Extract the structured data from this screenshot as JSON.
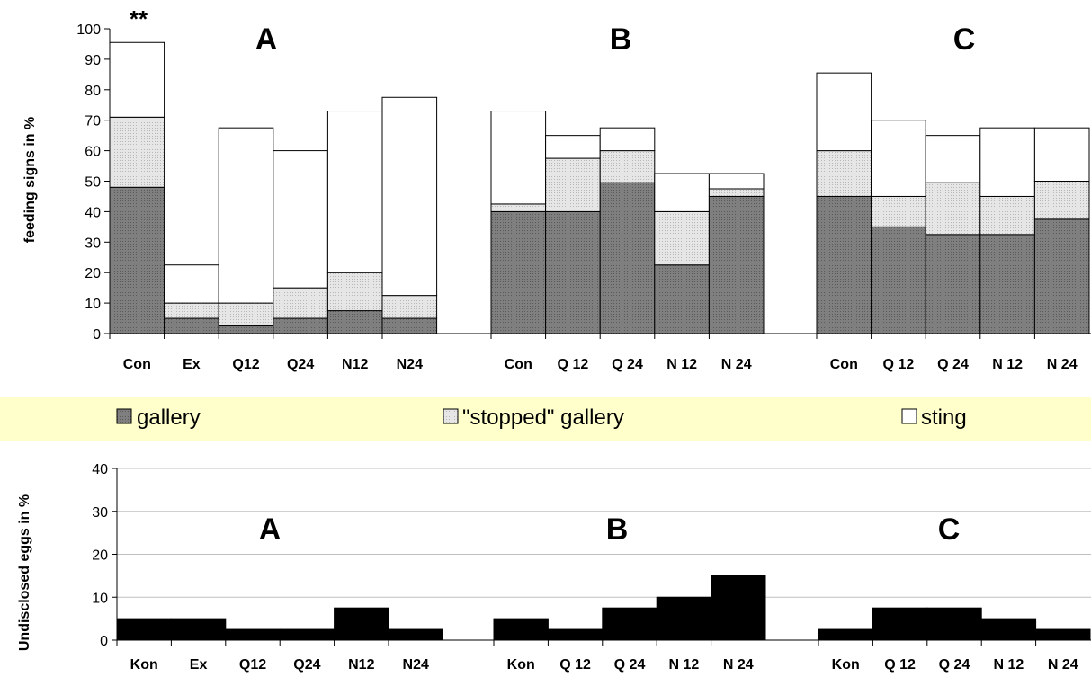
{
  "colors": {
    "gallery": "#7f7f7f",
    "stopped_gallery": "#e6e6e6",
    "sting": "#ffffff",
    "eggs": "#000000",
    "legend_bg": "#ffffcc",
    "grid": "#c0c0c0"
  },
  "legend": {
    "items": [
      {
        "label": "gallery",
        "color": "#7f7f7f"
      },
      {
        "label": "\"stopped\" gallery",
        "color": "#e6e6e6"
      },
      {
        "label": "sting",
        "color": "#ffffff"
      }
    ]
  },
  "chart_data": [
    {
      "type": "bar",
      "stacked": true,
      "ylabel": "feeding signs in %",
      "ylim": [
        0,
        100
      ],
      "yticks": [
        0,
        10,
        20,
        30,
        40,
        50,
        60,
        70,
        80,
        90,
        100
      ],
      "grid": false,
      "annotation": "**",
      "groups": [
        {
          "name": "A",
          "categories": [
            "Con",
            "Ex",
            "Q12",
            "Q24",
            "N12",
            "N24"
          ],
          "series": [
            {
              "name": "gallery",
              "values": [
                48,
                5,
                2.5,
                5,
                7.5,
                5
              ]
            },
            {
              "name": "\"stopped\" gallery",
              "values": [
                23,
                5,
                7.5,
                10,
                12.5,
                7.5
              ]
            },
            {
              "name": "sting",
              "values": [
                24.5,
                12.5,
                57.5,
                45,
                53,
                65
              ]
            }
          ]
        },
        {
          "name": "B",
          "categories": [
            "Con",
            "Q 12",
            "Q 24",
            "N 12",
            "N 24"
          ],
          "series": [
            {
              "name": "gallery",
              "values": [
                40,
                40,
                49.5,
                22.5,
                45
              ]
            },
            {
              "name": "\"stopped\" gallery",
              "values": [
                2.5,
                17.5,
                10.5,
                17.5,
                2.5
              ]
            },
            {
              "name": "sting",
              "values": [
                30.5,
                7.5,
                7.5,
                12.5,
                5
              ]
            }
          ]
        },
        {
          "name": "C",
          "categories": [
            "Con",
            "Q 12",
            "Q 24",
            "N 12",
            "N 24"
          ],
          "series": [
            {
              "name": "gallery",
              "values": [
                45,
                35,
                32.5,
                32.5,
                37.5
              ]
            },
            {
              "name": "\"stopped\" gallery",
              "values": [
                15,
                10,
                17,
                12.5,
                12.5
              ]
            },
            {
              "name": "sting",
              "values": [
                25.5,
                25,
                15.5,
                22.5,
                17.5
              ]
            }
          ]
        }
      ]
    },
    {
      "type": "bar",
      "ylabel": "Undisclosed eggs in %",
      "ylim": [
        0,
        40
      ],
      "yticks": [
        0,
        10,
        20,
        30,
        40
      ],
      "grid": true,
      "groups": [
        {
          "name": "A",
          "categories": [
            "Kon",
            "Ex",
            "Q12",
            "Q24",
            "N12",
            "N24"
          ],
          "values": [
            5,
            5,
            2.5,
            2.5,
            7.5,
            2.5
          ]
        },
        {
          "name": "B",
          "categories": [
            "Kon",
            "Q 12",
            "Q 24",
            "N 12",
            "N 24"
          ],
          "values": [
            5,
            2.5,
            7.5,
            10,
            15
          ]
        },
        {
          "name": "C",
          "categories": [
            "Kon",
            "Q 12",
            "Q 24",
            "N 12",
            "N 24"
          ],
          "values": [
            2.5,
            7.5,
            7.5,
            5,
            2.5
          ]
        }
      ]
    }
  ]
}
